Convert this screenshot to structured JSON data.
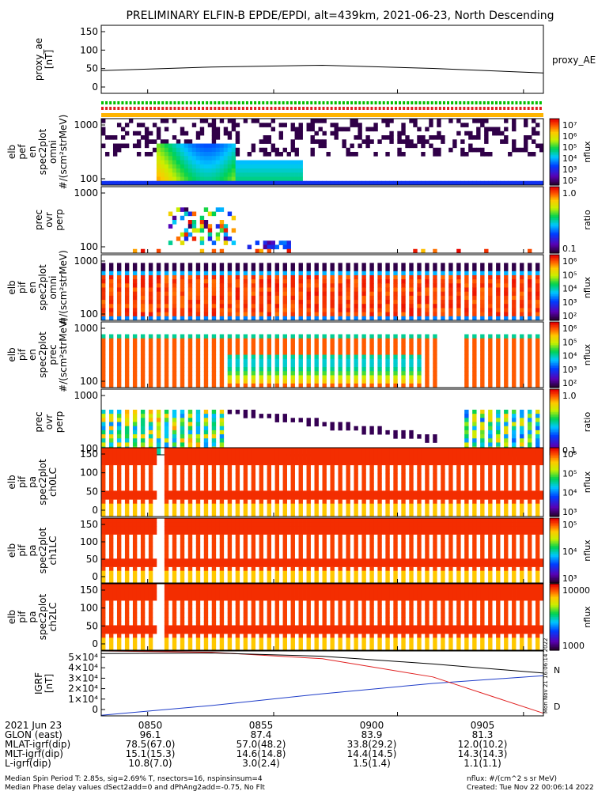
{
  "title": "PRELIMINARY ELFIN-B EPDE/EPDI, alt=439km, 2021-06-23, North Descending",
  "panels": [
    {
      "id": "proxy_ae",
      "ylabel": [
        "proxy_ae",
        "[nT]"
      ],
      "yticks": [
        "150",
        "100",
        "50",
        "0"
      ],
      "legend": "proxy_AE"
    },
    {
      "id": "bar",
      "ylabel": [],
      "yticks": []
    },
    {
      "id": "en_omni_e",
      "ylabel": [
        "elb",
        "pef",
        "en",
        "spec2plot",
        "omni",
        "#/(scm²strMeV)"
      ],
      "yticks": [
        "1000",
        "100"
      ],
      "cbar": {
        "label": "nflux",
        "ticks": [
          "10⁷",
          "10⁶",
          "10⁵",
          "10⁴",
          "10³",
          "10²"
        ]
      }
    },
    {
      "id": "ratio_e",
      "ylabel": [
        "prec",
        "ovr",
        "perp"
      ],
      "yticks": [
        "1000",
        "100"
      ],
      "cbar": {
        "label": "ratio",
        "ticks": [
          "1.0",
          "0.1"
        ]
      }
    },
    {
      "id": "en_omni_i",
      "ylabel": [
        "elb",
        "pif",
        "en",
        "spec2plot",
        "omni",
        "#/(scm²strMeV)"
      ],
      "yticks": [
        "1000",
        "100"
      ],
      "cbar": {
        "label": "nflux",
        "ticks": [
          "10⁶",
          "10⁵",
          "10⁴",
          "10³",
          "10²"
        ]
      }
    },
    {
      "id": "en_prec_i",
      "ylabel": [
        "elb",
        "pif",
        "en",
        "spec2plot",
        "prec",
        "#/(scm²strMeV)"
      ],
      "yticks": [
        "1000",
        "100"
      ],
      "cbar": {
        "label": "nflux",
        "ticks": [
          "10⁶",
          "10⁵",
          "10⁴",
          "10³",
          "10²"
        ]
      }
    },
    {
      "id": "ratio_i",
      "ylabel": [
        "prec",
        "ovr",
        "perp"
      ],
      "yticks": [
        "1000",
        "100"
      ],
      "cbar": {
        "label": "ratio",
        "ticks": [
          "1.0",
          "0.1"
        ]
      }
    },
    {
      "id": "pa_ch0",
      "ylabel": [
        "elb",
        "pif",
        "pa",
        "spec2plot",
        "ch0LC"
      ],
      "yticks": [
        "150",
        "100",
        "50",
        "0"
      ],
      "cbar": {
        "label": "nflux",
        "ticks": [
          "10⁵",
          "10⁵",
          "10⁴",
          "10³"
        ]
      }
    },
    {
      "id": "pa_ch1",
      "ylabel": [
        "elb",
        "pif",
        "pa",
        "spec2plot",
        "ch1LC"
      ],
      "yticks": [
        "150",
        "100",
        "50",
        "0"
      ],
      "cbar": {
        "label": "nflux",
        "ticks": [
          "10⁵",
          "10⁴",
          "10³"
        ]
      }
    },
    {
      "id": "pa_ch2",
      "ylabel": [
        "elb",
        "pif",
        "pa",
        "spec2plot",
        "ch2LC"
      ],
      "yticks": [
        "150",
        "100",
        "50",
        "0"
      ],
      "cbar": {
        "label": "nflux",
        "ticks": [
          "10000",
          "1000"
        ]
      }
    },
    {
      "id": "igrf",
      "ylabel": [
        "IGRF",
        "[nT]"
      ],
      "yticks": [
        "5×10⁴",
        "4×10⁴",
        "3×10⁴",
        "2×10⁴",
        "1×10⁴",
        "0"
      ],
      "legend": [
        "N",
        "D"
      ]
    }
  ],
  "bottom_rows": [
    {
      "label": "2021 Jun 23",
      "vals": [
        "0850",
        "0855",
        "0900",
        "0905"
      ]
    },
    {
      "label": "GLON (east)",
      "vals": [
        "96.1",
        "87.4",
        "83.9",
        "81.3"
      ]
    },
    {
      "label": "MLAT-igrf(dip)",
      "vals": [
        "78.5(67.0)",
        "57.0(48.2)",
        "33.8(29.2)",
        "12.0(10.2)"
      ]
    },
    {
      "label": "MLT-igrf(dip)",
      "vals": [
        "15.1(15.3)",
        "14.6(14.8)",
        "14.4(14.5)",
        "14.3(14.3)"
      ]
    },
    {
      "label": "L-igrf(dip)",
      "vals": [
        "10.8(7.0)",
        "3.0(2.4)",
        "1.5(1.4)",
        "1.1(1.1)"
      ]
    }
  ],
  "footer": {
    "left1": "Median Spin Period T: 2.85s, sig=2.69% T, nsectors=16, nspinsinsum=4",
    "left2": "Median Phase delay values dSect2add=0 and dPhAng2add=-0.75, No Flt",
    "right1": "nflux: #/(cm^2 s sr MeV)",
    "right2": "Created: Tue Nov 22 00:06:14 2022",
    "vertical": "Mon Nov 21 16:06:14 2022"
  },
  "chart_data": {
    "type": "line",
    "x": [
      "0850",
      "0855",
      "0900",
      "0905"
    ],
    "proxy_ae": {
      "ylim": [
        0,
        150
      ],
      "values": [
        50,
        58,
        62,
        55,
        45
      ]
    },
    "igrf": {
      "ylim": [
        0,
        50000
      ],
      "series": [
        {
          "name": "N",
          "color": "#1e3cc8",
          "values": [
            500,
            8000,
            17000,
            25000,
            31000
          ]
        },
        {
          "name": "D",
          "color": "#e02020",
          "values": [
            50000,
            49000,
            44000,
            30000,
            2000
          ]
        },
        {
          "color": "#000000",
          "values": [
            48000,
            48500,
            46000,
            40000,
            33000
          ]
        },
        {
          "color": "#00c000",
          "values": [
            0,
            0,
            0,
            0,
            0
          ]
        }
      ]
    }
  }
}
